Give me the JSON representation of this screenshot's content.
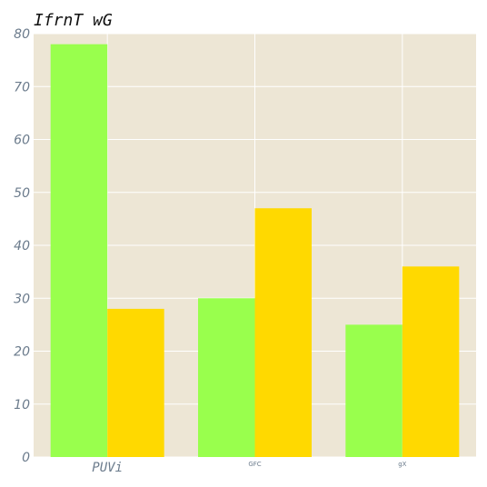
{
  "chart_data": {
    "type": "bar",
    "title": "IfrnT wG",
    "xlabel": "",
    "ylabel": "",
    "categories": [
      "PUVi",
      "GFC",
      "gX"
    ],
    "series": [
      {
        "values": [
          78,
          30,
          25
        ],
        "color": "#99ff4d"
      },
      {
        "values": [
          28,
          47,
          36
        ],
        "color": "#ffd900"
      }
    ],
    "ylim": [
      0,
      80
    ],
    "yticks": [
      0,
      10,
      20,
      30,
      40,
      50,
      60,
      70,
      80
    ],
    "grid": true,
    "legend": "none",
    "colors": {
      "plot_background": "#ede6d5",
      "grid": "#ffffff",
      "tick_label": "#6b7b8c"
    }
  }
}
